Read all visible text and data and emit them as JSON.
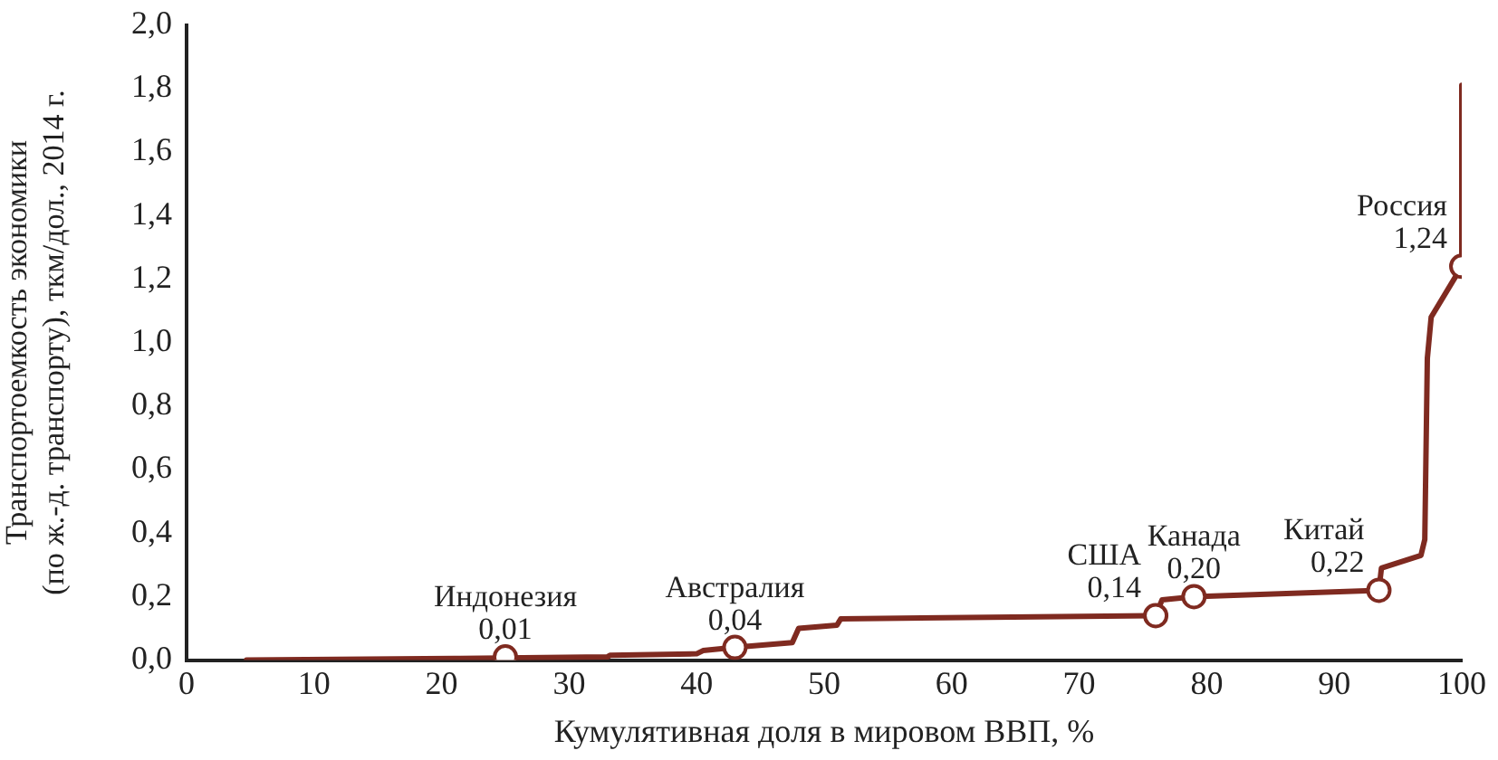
{
  "chart_data": {
    "type": "line",
    "xlabel": "Кумулятивная доля в мировом ВВП, %",
    "ylabel": "Транспортоемкость экономики\n(по ж.-д. транспорту), ткм/дол., 2014 г.",
    "xlim": [
      0,
      100
    ],
    "xticks": [
      0,
      10,
      20,
      30,
      40,
      50,
      60,
      70,
      80,
      90,
      100
    ],
    "ylim": [
      0,
      2
    ],
    "yticks": [
      {
        "value": 0,
        "label": "0,0"
      },
      {
        "value": 0.2,
        "label": "0,2"
      },
      {
        "value": 0.4,
        "label": "0,4"
      },
      {
        "value": 0.6,
        "label": "0,6"
      },
      {
        "value": 0.8,
        "label": "0,8"
      },
      {
        "value": 1,
        "label": "1,0"
      },
      {
        "value": 1.2,
        "label": "1,2"
      },
      {
        "value": 1.4,
        "label": "1,4"
      },
      {
        "value": 1.6,
        "label": "1,6"
      },
      {
        "value": 1.8,
        "label": "1,8"
      },
      {
        "value": 2,
        "label": "2,0"
      }
    ],
    "grid": false,
    "legend": false,
    "line_style": "solid",
    "series": [
      {
        "color": "#7f2a20",
        "marker": "none",
        "x": [
          4.7,
          21,
          33,
          33.2,
          40,
          40.5,
          43,
          47.5,
          48,
          51,
          51.3,
          76,
          76.5,
          79,
          93.5,
          93.7,
          96.8,
          97.1,
          97.3,
          97.6,
          100,
          100
        ],
        "values": [
          0,
          0.005,
          0.01,
          0.015,
          0.02,
          0.03,
          0.04,
          0.055,
          0.1,
          0.11,
          0.13,
          0.14,
          0.19,
          0.2,
          0.22,
          0.29,
          0.33,
          0.38,
          0.95,
          1.08,
          1.24,
          1.81
        ]
      },
      {
        "type": "scatter",
        "color": "#7f2a20",
        "marker": "circle",
        "x": [
          25,
          43,
          76,
          79,
          93.5,
          100
        ],
        "values": [
          0.01,
          0.04,
          0.14,
          0.2,
          0.22,
          1.24
        ],
        "value_labels": [
          "0,01",
          "0,04",
          "0,14",
          "0,20",
          "0,22",
          "1,24"
        ]
      }
    ],
    "annotations": [
      {
        "text": "Индонезия",
        "x": 25,
        "y": 0.01
      },
      {
        "text": "Австралия",
        "x": 43,
        "y": 0.04
      },
      {
        "text": "США",
        "x": 76,
        "y": 0.14
      },
      {
        "text": "Канада",
        "x": 79,
        "y": 0.2
      },
      {
        "text": "Китай",
        "x": 93.5,
        "y": 0.22
      },
      {
        "text": "Россия",
        "x": 100,
        "y": 1.24
      }
    ]
  }
}
